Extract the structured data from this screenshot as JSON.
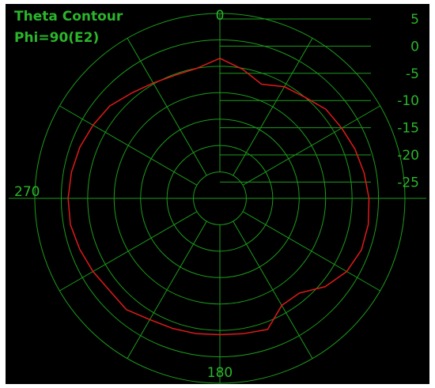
{
  "chart_data": {
    "type": "polar-line",
    "title": "Theta Contour",
    "subtitle": "Phi=90(E2)",
    "angle_labels": [
      {
        "deg": 0,
        "text": "0"
      },
      {
        "deg": 90,
        "text": "270"
      },
      {
        "deg": 180,
        "text": "180"
      }
    ],
    "radial_tick_labels": [
      "5",
      "0",
      "-5",
      "-10",
      "-15",
      "-20",
      "-25"
    ],
    "radial_range_db": [
      -30,
      5
    ],
    "ring_step_db": 5,
    "spoke_step_deg": 30,
    "grid": true,
    "series": [
      {
        "points": [
          {
            "theta": 0,
            "value": -3.5
          },
          {
            "theta": 10,
            "value": -5.0
          },
          {
            "theta": 20,
            "value": -5.2
          },
          {
            "theta": 30,
            "value": -4.8
          },
          {
            "theta": 40,
            "value": -4.0
          },
          {
            "theta": 50,
            "value": -2.8
          },
          {
            "theta": 60,
            "value": -2.3
          },
          {
            "theta": 70,
            "value": -1.8
          },
          {
            "theta": 80,
            "value": -1.5
          },
          {
            "theta": 90,
            "value": -1.3
          },
          {
            "theta": 100,
            "value": -1.3
          },
          {
            "theta": 110,
            "value": -1.8
          },
          {
            "theta": 120,
            "value": -2.3
          },
          {
            "theta": 130,
            "value": -2.8
          },
          {
            "theta": 140,
            "value": -2.5
          },
          {
            "theta": 150,
            "value": -3.5
          },
          {
            "theta": 160,
            "value": -3.8
          },
          {
            "theta": 170,
            "value": -4.0
          },
          {
            "theta": 180,
            "value": -4.2
          },
          {
            "theta": 190,
            "value": -4.0
          },
          {
            "theta": 200,
            "value": -3.6
          },
          {
            "theta": 210,
            "value": -6.6
          },
          {
            "theta": 220,
            "value": -6.6
          },
          {
            "theta": 230,
            "value": -4.0
          },
          {
            "theta": 240,
            "value": -2.3
          },
          {
            "theta": 250,
            "value": -1.5
          },
          {
            "theta": 260,
            "value": -1.5
          },
          {
            "theta": 270,
            "value": -1.8
          },
          {
            "theta": 280,
            "value": -2.3
          },
          {
            "theta": 290,
            "value": -2.8
          },
          {
            "theta": 300,
            "value": -3.4
          },
          {
            "theta": 310,
            "value": -3.8
          },
          {
            "theta": 320,
            "value": -5.0
          },
          {
            "theta": 330,
            "value": -5.6
          },
          {
            "theta": 340,
            "value": -7.0
          },
          {
            "theta": 350,
            "value": -5.2
          }
        ]
      }
    ],
    "colors": {
      "background": "#000000",
      "grid": "#1c9c1c",
      "text": "#2bb52b",
      "trace": "#e01a1a"
    }
  }
}
